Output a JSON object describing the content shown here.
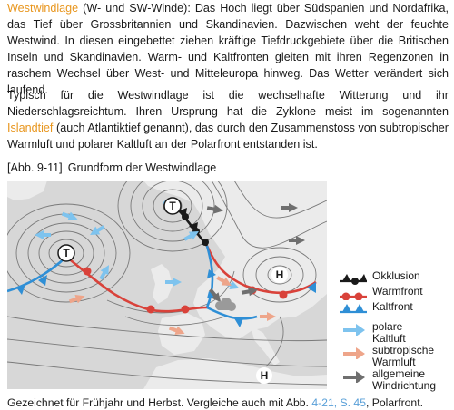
{
  "paragraph1": {
    "term": "Westwindlage",
    "text": " (W- und SW-Winde): Das Hoch liegt über Südspanien und Nordafrika, das Tief über Grossbritannien und Skandinavien. Dazwischen weht der feuchte Westwind. In diesen eingebettet ziehen kräftige Tiefdruckgebiete über die Britischen Inseln und Skandinavien. Warm- und Kaltfronten gleiten mit ihren Regenzonen in raschem Wechsel über West- und Mitteleuropa hinweg. Das Wetter verändert sich laufend."
  },
  "paragraph2": {
    "before": "Typisch für die Westwindlage ist die wechselhafte Witterung und ihr Niederschlagsreichtum. Ihren Ursprung hat die Zyklone meist im sogenannten ",
    "term": "Islandtief",
    "after": " (auch Atlantiktief genannt), das durch den Zusammenstoss von subtropischer Warmluft und polarer Kaltluft an der Polarfront entstanden ist."
  },
  "figure": {
    "label": "[Abb. 9-11]",
    "title": "Grundform der Westwindlage",
    "map_symbols": {
      "low": "T",
      "high": "H"
    },
    "legend": {
      "occlusion": "Okklusion",
      "warm_front": "Warmfront",
      "cold_front": "Kaltfront",
      "polar_air_l1": "polare",
      "polar_air_l2": "Kaltluft",
      "subtropical_air_l1": "subtropische",
      "subtropical_air_l2": "Warmluft",
      "general_wind_l1": "allgemeine",
      "general_wind_l2": "Windrichtung"
    },
    "caption": {
      "before": "Gezeichnet für Frühjahr und Herbst. Vergleiche auch mit Abb. ",
      "ref": "4-21, S. 45",
      "after": ", Polarfront."
    }
  },
  "colors": {
    "highlight": "#e8961e",
    "warm_front": "#d9423a",
    "cold_front": "#2f8fd6",
    "occlusion": "#1a1a1a",
    "polar_arrow": "#7ec3ee",
    "subtropical_arrow": "#eea58a",
    "wind_arrow": "#6f6f6f",
    "reference": "#5aa0d8"
  }
}
